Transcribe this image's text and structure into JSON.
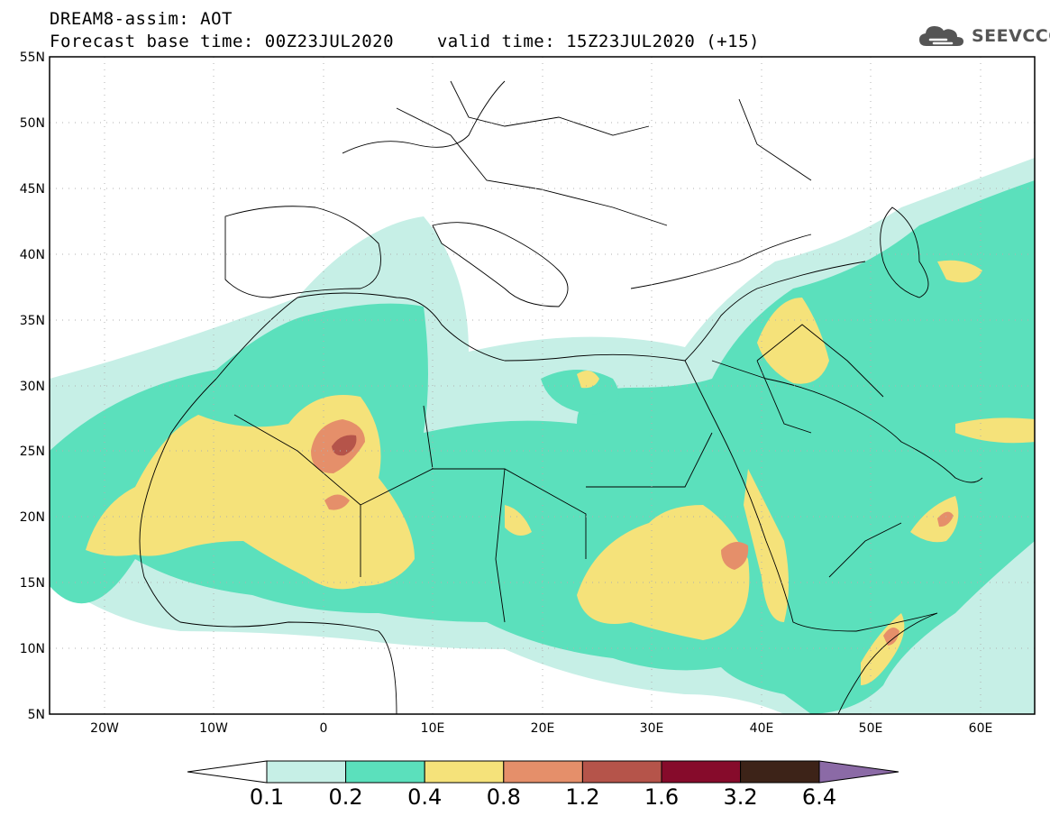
{
  "header": {
    "title": "DREAM8-assim: AOT",
    "base_time_label": "Forecast base time: 00Z23JUL2020",
    "valid_time_label": "valid time: 15Z23JUL2020 (+15)"
  },
  "logo": {
    "text": "SEEVCCC",
    "icon": "cloud-icon"
  },
  "map": {
    "lat_labels": [
      "55N",
      "50N",
      "45N",
      "40N",
      "35N",
      "30N",
      "25N",
      "20N",
      "15N",
      "10N",
      "5N"
    ],
    "lon_labels": [
      "20W",
      "10W",
      "0",
      "10E",
      "20E",
      "30E",
      "40E",
      "50E",
      "60E"
    ],
    "extent": {
      "lon": [
        -25,
        65
      ],
      "lat": [
        5,
        55
      ]
    }
  },
  "colorbar": {
    "labels": [
      "0.1",
      "0.2",
      "0.4",
      "0.8",
      "1.2",
      "1.6",
      "3.2",
      "6.4"
    ],
    "colors": [
      "#ffffff",
      "#c6efe6",
      "#5be0bc",
      "#f5e27a",
      "#e58f6a",
      "#b5544a",
      "#860b2b",
      "#3d2318",
      "#8b6aa6"
    ]
  }
}
